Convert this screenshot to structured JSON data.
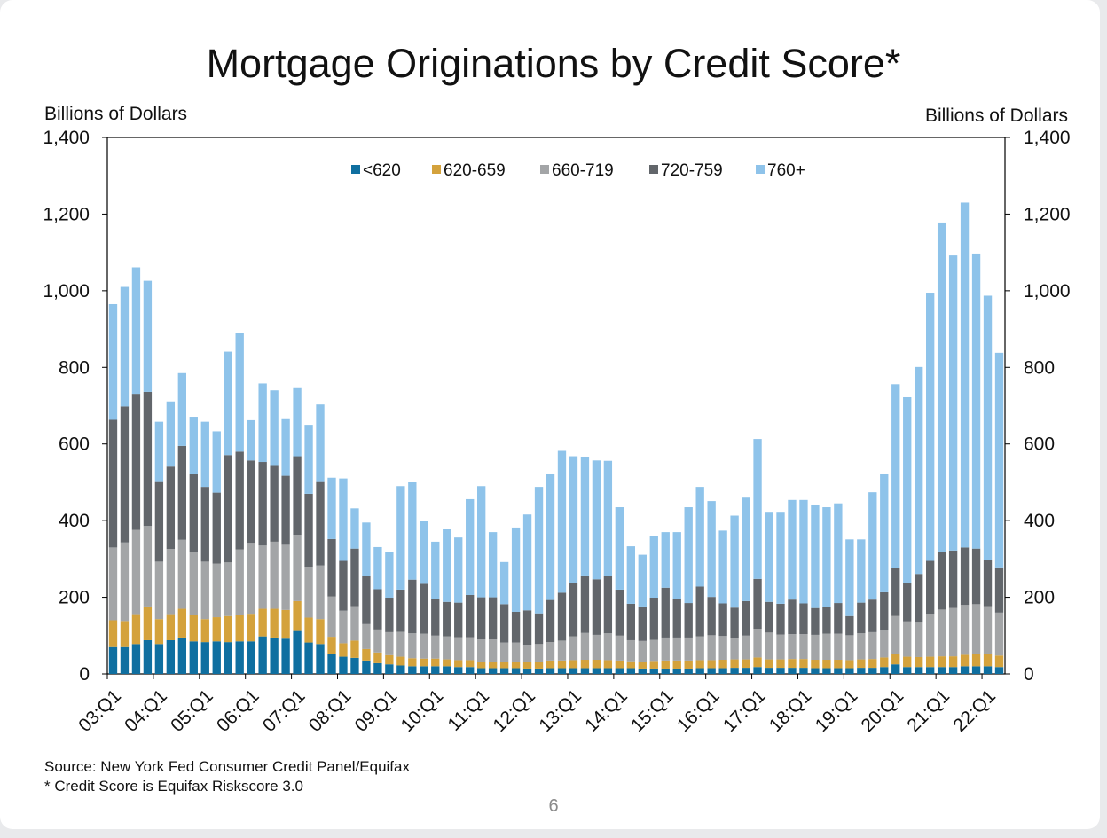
{
  "page_number": "6",
  "notes": {
    "source": "Source: New York Fed Consumer Credit Panel/Equifax",
    "footnote": "* Credit Score is Equifax Riskscore 3.0"
  },
  "chart_data": {
    "type": "bar",
    "stacked": true,
    "title": "Mortgage Originations by Credit Score*",
    "ylabel": "Billions of Dollars",
    "ylabel_right": "Billions of Dollars",
    "ylim": [
      0,
      1400
    ],
    "yticks": [
      0,
      200,
      400,
      600,
      800,
      1000,
      1200,
      1400
    ],
    "ytick_labels": [
      "0",
      "200",
      "400",
      "600",
      "800",
      "1,000",
      "1,200",
      "1,400"
    ],
    "grid": false,
    "legend_position": "top-center",
    "x_tick_labels": [
      "03:Q1",
      "04:Q1",
      "05:Q1",
      "06:Q1",
      "07:Q1",
      "08:Q1",
      "09:Q1",
      "10:Q1",
      "11:Q1",
      "12:Q1",
      "13:Q1",
      "14:Q1",
      "15:Q1",
      "16:Q1",
      "17:Q1",
      "18:Q1",
      "19:Q1",
      "20:Q1",
      "21:Q1",
      "22:Q1"
    ],
    "categories": [
      "03:Q1",
      "03:Q2",
      "03:Q3",
      "03:Q4",
      "04:Q1",
      "04:Q2",
      "04:Q3",
      "04:Q4",
      "05:Q1",
      "05:Q2",
      "05:Q3",
      "05:Q4",
      "06:Q1",
      "06:Q2",
      "06:Q3",
      "06:Q4",
      "07:Q1",
      "07:Q2",
      "07:Q3",
      "07:Q4",
      "08:Q1",
      "08:Q2",
      "08:Q3",
      "08:Q4",
      "09:Q1",
      "09:Q2",
      "09:Q3",
      "09:Q4",
      "10:Q1",
      "10:Q2",
      "10:Q3",
      "10:Q4",
      "11:Q1",
      "11:Q2",
      "11:Q3",
      "11:Q4",
      "12:Q1",
      "12:Q2",
      "12:Q3",
      "12:Q4",
      "13:Q1",
      "13:Q2",
      "13:Q3",
      "13:Q4",
      "14:Q1",
      "14:Q2",
      "14:Q3",
      "14:Q4",
      "15:Q1",
      "15:Q2",
      "15:Q3",
      "15:Q4",
      "16:Q1",
      "16:Q2",
      "16:Q3",
      "16:Q4",
      "17:Q1",
      "17:Q2",
      "17:Q3",
      "17:Q4",
      "18:Q1",
      "18:Q2",
      "18:Q3",
      "18:Q4",
      "19:Q1",
      "19:Q2",
      "19:Q3",
      "19:Q4",
      "20:Q1",
      "20:Q2",
      "20:Q3",
      "20:Q4",
      "21:Q1",
      "21:Q2",
      "21:Q3",
      "21:Q4",
      "22:Q1",
      "22:Q2"
    ],
    "series": [
      {
        "name": "<620",
        "color": "#0f6fa0",
        "values": [
          70,
          70,
          78,
          88,
          78,
          88,
          95,
          85,
          83,
          85,
          83,
          85,
          85,
          98,
          95,
          92,
          112,
          82,
          78,
          52,
          45,
          42,
          35,
          28,
          25,
          22,
          20,
          20,
          20,
          20,
          18,
          18,
          15,
          15,
          15,
          15,
          14,
          14,
          15,
          15,
          15,
          15,
          15,
          15,
          15,
          15,
          14,
          14,
          14,
          14,
          14,
          15,
          15,
          15,
          16,
          16,
          18,
          16,
          16,
          16,
          16,
          15,
          15,
          15,
          15,
          16,
          16,
          18,
          25,
          18,
          18,
          18,
          18,
          18,
          20,
          20,
          20,
          18
        ]
      },
      {
        "name": "620-659",
        "color": "#d4a23c",
        "values": [
          70,
          68,
          78,
          88,
          65,
          68,
          75,
          68,
          60,
          63,
          68,
          70,
          72,
          72,
          75,
          75,
          78,
          65,
          65,
          45,
          35,
          45,
          30,
          28,
          24,
          23,
          21,
          20,
          20,
          18,
          18,
          18,
          17,
          17,
          17,
          17,
          17,
          17,
          20,
          20,
          21,
          22,
          22,
          21,
          20,
          18,
          17,
          20,
          21,
          21,
          21,
          21,
          21,
          22,
          22,
          22,
          25,
          22,
          22,
          23,
          23,
          22,
          22,
          22,
          21,
          22,
          23,
          25,
          28,
          27,
          26,
          27,
          28,
          28,
          30,
          32,
          32,
          30
        ]
      },
      {
        "name": "660-719",
        "color": "#a3a5a7",
        "values": [
          190,
          205,
          220,
          210,
          150,
          170,
          180,
          165,
          150,
          140,
          140,
          170,
          185,
          165,
          175,
          170,
          173,
          133,
          140,
          105,
          85,
          90,
          65,
          60,
          60,
          65,
          65,
          65,
          60,
          60,
          60,
          60,
          58,
          58,
          50,
          50,
          45,
          47,
          48,
          52,
          62,
          70,
          65,
          70,
          65,
          55,
          55,
          55,
          60,
          60,
          60,
          62,
          65,
          62,
          55,
          62,
          75,
          70,
          65,
          65,
          65,
          65,
          68,
          68,
          65,
          68,
          70,
          70,
          98,
          92,
          92,
          112,
          122,
          126,
          130,
          130,
          125,
          112
        ]
      },
      {
        "name": "720-759",
        "color": "#62666b",
        "values": [
          333,
          355,
          355,
          350,
          210,
          215,
          245,
          205,
          195,
          185,
          280,
          255,
          215,
          218,
          200,
          180,
          205,
          190,
          220,
          150,
          130,
          150,
          125,
          105,
          90,
          110,
          140,
          130,
          95,
          90,
          90,
          110,
          110,
          110,
          100,
          80,
          90,
          80,
          110,
          125,
          140,
          150,
          145,
          150,
          120,
          95,
          90,
          110,
          130,
          100,
          90,
          130,
          100,
          85,
          80,
          90,
          130,
          80,
          80,
          90,
          80,
          70,
          70,
          80,
          50,
          80,
          85,
          100,
          125,
          100,
          125,
          138,
          150,
          150,
          150,
          145,
          120,
          118
        ]
      },
      {
        "name": "760+",
        "color": "#8ec3ea",
        "values": [
          302,
          312,
          330,
          290,
          155,
          170,
          190,
          148,
          170,
          160,
          270,
          310,
          105,
          205,
          195,
          150,
          180,
          180,
          200,
          160,
          215,
          105,
          140,
          110,
          120,
          270,
          255,
          165,
          150,
          190,
          170,
          250,
          290,
          170,
          110,
          220,
          250,
          330,
          330,
          370,
          330,
          310,
          310,
          300,
          215,
          150,
          135,
          160,
          145,
          175,
          250,
          260,
          250,
          190,
          240,
          270,
          365,
          235,
          240,
          260,
          270,
          270,
          260,
          260,
          200,
          165,
          280,
          310,
          480,
          485,
          540,
          700,
          860,
          770,
          900,
          770,
          690,
          560
        ]
      }
    ]
  }
}
